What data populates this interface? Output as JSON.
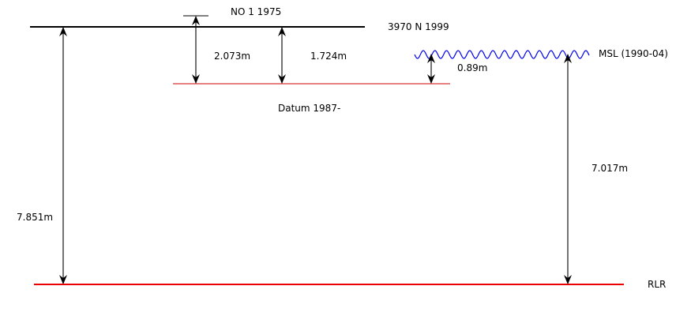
{
  "labels": {
    "no_1975": "NO 1 1975",
    "bm_3970": "3970 N 1999",
    "msl": "MSL (1990-04)",
    "datum": "Datum 1987-",
    "rlr": "RLR"
  },
  "measurements": {
    "d_2073": "2.073m",
    "d_1724": "1.724m",
    "d_089": "0.89m",
    "d_7851": "7.851m",
    "d_7017": "7.017m"
  },
  "colors": {
    "benchmark": "#000000",
    "datum": "#cc0000",
    "rlr": "#ee0000",
    "msl": "#0000ee"
  }
}
